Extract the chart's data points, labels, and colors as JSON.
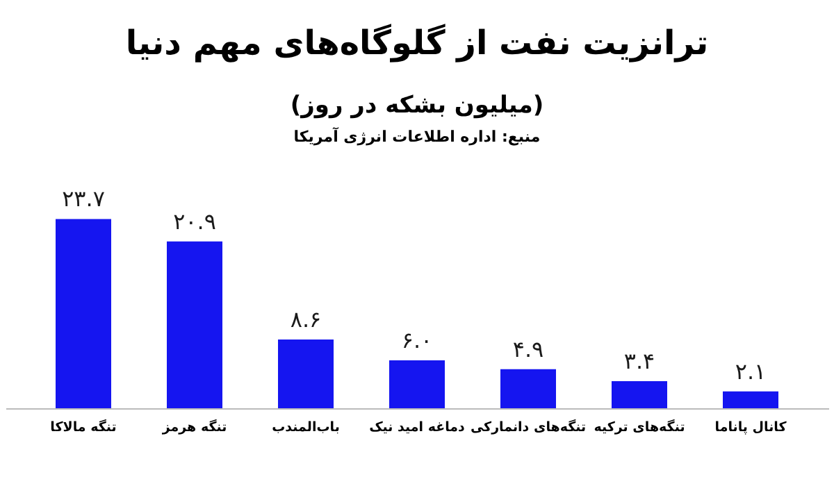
{
  "chart_data": {
    "type": "bar",
    "title": "ترانزیت نفت از گلوگاه‌های مهم دنیا",
    "subtitle": "(میلیون بشکه در روز)",
    "annotations": [
      "منبع: اداره اطلاعات انرژی آمریکا"
    ],
    "categories": [
      "تنگه مالاکا",
      "تنگه هرمز",
      "باب‌المندب",
      "دماغه امید نیک",
      "تنگه‌های دانمارکی",
      "تنگه‌های ترکیه",
      "کانال پاناما"
    ],
    "values": [
      23.7,
      20.9,
      8.6,
      6.0,
      4.9,
      3.4,
      2.1
    ],
    "value_labels": [
      "۲۳.۷",
      "۲۰.۹",
      "۸.۶",
      "۶.۰",
      "۴.۹",
      "۳.۴",
      "۲.۱"
    ],
    "color": "#1515f0",
    "tick_labels": "x",
    "grid": false
  }
}
